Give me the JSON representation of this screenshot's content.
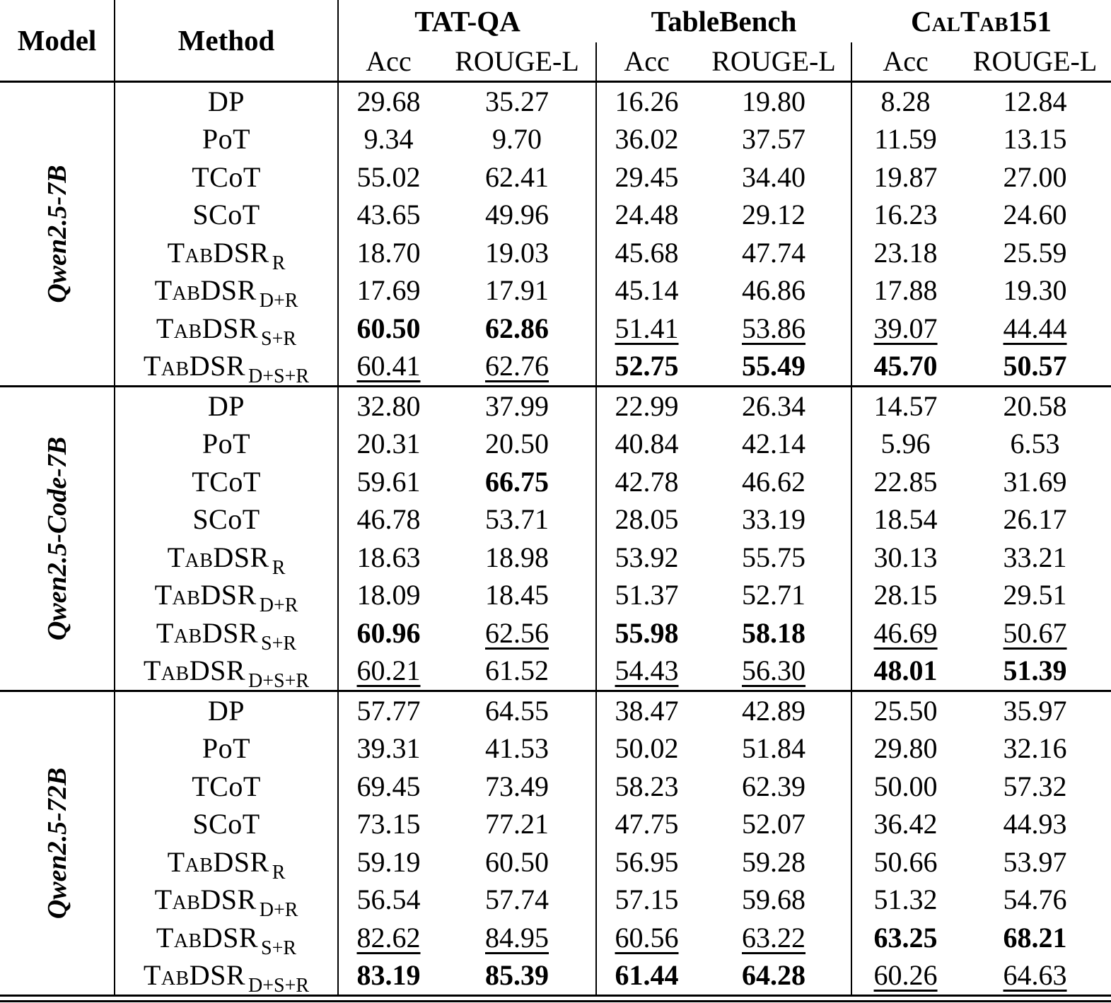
{
  "page": {
    "background_color": "#ffffff",
    "text_color": "#000000"
  },
  "table": {
    "header": {
      "model_label": "Model",
      "method_label": "Method",
      "groups": [
        {
          "label": "TAT-QA",
          "smallcaps": false,
          "metrics": [
            "Acc",
            "ROUGE-L"
          ]
        },
        {
          "label": "TableBench",
          "smallcaps": false,
          "metrics": [
            "Acc",
            "ROUGE-L"
          ]
        },
        {
          "label": "CalTab151",
          "smallcaps": true,
          "metrics": [
            "Acc",
            "ROUGE-L"
          ]
        }
      ]
    },
    "blocks": [
      {
        "model": "Qwen2.5-7B",
        "rows": [
          {
            "method": {
              "base": "DP",
              "sc": false,
              "sub": ""
            },
            "cells": [
              {
                "v": "29.68"
              },
              {
                "v": "35.27"
              },
              {
                "v": "16.26"
              },
              {
                "v": "19.80"
              },
              {
                "v": "8.28"
              },
              {
                "v": "12.84"
              }
            ]
          },
          {
            "method": {
              "base": "PoT",
              "sc": false,
              "sub": ""
            },
            "cells": [
              {
                "v": "9.34"
              },
              {
                "v": "9.70"
              },
              {
                "v": "36.02"
              },
              {
                "v": "37.57"
              },
              {
                "v": "11.59"
              },
              {
                "v": "13.15"
              }
            ]
          },
          {
            "method": {
              "base": "TCoT",
              "sc": false,
              "sub": ""
            },
            "cells": [
              {
                "v": "55.02"
              },
              {
                "v": "62.41"
              },
              {
                "v": "29.45"
              },
              {
                "v": "34.40"
              },
              {
                "v": "19.87"
              },
              {
                "v": "27.00"
              }
            ]
          },
          {
            "method": {
              "base": "SCoT",
              "sc": false,
              "sub": ""
            },
            "cells": [
              {
                "v": "43.65"
              },
              {
                "v": "49.96"
              },
              {
                "v": "24.48"
              },
              {
                "v": "29.12"
              },
              {
                "v": "16.23"
              },
              {
                "v": "24.60"
              }
            ]
          },
          {
            "method": {
              "base": "TabDSR",
              "sc": true,
              "sub": "R"
            },
            "cells": [
              {
                "v": "18.70"
              },
              {
                "v": "19.03"
              },
              {
                "v": "45.68"
              },
              {
                "v": "47.74"
              },
              {
                "v": "23.18"
              },
              {
                "v": "25.59"
              }
            ]
          },
          {
            "method": {
              "base": "TabDSR",
              "sc": true,
              "sub": "D+R"
            },
            "cells": [
              {
                "v": "17.69"
              },
              {
                "v": "17.91"
              },
              {
                "v": "45.14"
              },
              {
                "v": "46.86"
              },
              {
                "v": "17.88"
              },
              {
                "v": "19.30"
              }
            ]
          },
          {
            "method": {
              "base": "TabDSR",
              "sc": true,
              "sub": "S+R"
            },
            "cells": [
              {
                "v": "60.50",
                "f": "b"
              },
              {
                "v": "62.86",
                "f": "b"
              },
              {
                "v": "51.41",
                "f": "u"
              },
              {
                "v": "53.86",
                "f": "u"
              },
              {
                "v": "39.07",
                "f": "u"
              },
              {
                "v": "44.44",
                "f": "u"
              }
            ]
          },
          {
            "method": {
              "base": "TabDSR",
              "sc": true,
              "sub": "D+S+R"
            },
            "cells": [
              {
                "v": "60.41",
                "f": "u"
              },
              {
                "v": "62.76",
                "f": "u"
              },
              {
                "v": "52.75",
                "f": "b"
              },
              {
                "v": "55.49",
                "f": "b"
              },
              {
                "v": "45.70",
                "f": "b"
              },
              {
                "v": "50.57",
                "f": "b"
              }
            ]
          }
        ]
      },
      {
        "model": "Qwen2.5-Code-7B",
        "rows": [
          {
            "method": {
              "base": "DP",
              "sc": false,
              "sub": ""
            },
            "cells": [
              {
                "v": "32.80"
              },
              {
                "v": "37.99"
              },
              {
                "v": "22.99"
              },
              {
                "v": "26.34"
              },
              {
                "v": "14.57"
              },
              {
                "v": "20.58"
              }
            ]
          },
          {
            "method": {
              "base": "PoT",
              "sc": false,
              "sub": ""
            },
            "cells": [
              {
                "v": "20.31"
              },
              {
                "v": "20.50"
              },
              {
                "v": "40.84"
              },
              {
                "v": "42.14"
              },
              {
                "v": "5.96"
              },
              {
                "v": "6.53"
              }
            ]
          },
          {
            "method": {
              "base": "TCoT",
              "sc": false,
              "sub": ""
            },
            "cells": [
              {
                "v": "59.61"
              },
              {
                "v": "66.75",
                "f": "b"
              },
              {
                "v": "42.78"
              },
              {
                "v": "46.62"
              },
              {
                "v": "22.85"
              },
              {
                "v": "31.69"
              }
            ]
          },
          {
            "method": {
              "base": "SCoT",
              "sc": false,
              "sub": ""
            },
            "cells": [
              {
                "v": "46.78"
              },
              {
                "v": "53.71"
              },
              {
                "v": "28.05"
              },
              {
                "v": "33.19"
              },
              {
                "v": "18.54"
              },
              {
                "v": "26.17"
              }
            ]
          },
          {
            "method": {
              "base": "TabDSR",
              "sc": true,
              "sub": "R"
            },
            "cells": [
              {
                "v": "18.63"
              },
              {
                "v": "18.98"
              },
              {
                "v": "53.92"
              },
              {
                "v": "55.75"
              },
              {
                "v": "30.13"
              },
              {
                "v": "33.21"
              }
            ]
          },
          {
            "method": {
              "base": "TabDSR",
              "sc": true,
              "sub": "D+R"
            },
            "cells": [
              {
                "v": "18.09"
              },
              {
                "v": "18.45"
              },
              {
                "v": "51.37"
              },
              {
                "v": "52.71"
              },
              {
                "v": "28.15"
              },
              {
                "v": "29.51"
              }
            ]
          },
          {
            "method": {
              "base": "TabDSR",
              "sc": true,
              "sub": "S+R"
            },
            "cells": [
              {
                "v": "60.96",
                "f": "b"
              },
              {
                "v": "62.56",
                "f": "u"
              },
              {
                "v": "55.98",
                "f": "b"
              },
              {
                "v": "58.18",
                "f": "b"
              },
              {
                "v": "46.69",
                "f": "u"
              },
              {
                "v": "50.67",
                "f": "u"
              }
            ]
          },
          {
            "method": {
              "base": "TabDSR",
              "sc": true,
              "sub": "D+S+R"
            },
            "cells": [
              {
                "v": "60.21",
                "f": "u"
              },
              {
                "v": "61.52"
              },
              {
                "v": "54.43",
                "f": "u"
              },
              {
                "v": "56.30",
                "f": "u"
              },
              {
                "v": "48.01",
                "f": "b"
              },
              {
                "v": "51.39",
                "f": "b"
              }
            ]
          }
        ]
      },
      {
        "model": "Qwen2.5-72B",
        "rows": [
          {
            "method": {
              "base": "DP",
              "sc": false,
              "sub": ""
            },
            "cells": [
              {
                "v": "57.77"
              },
              {
                "v": "64.55"
              },
              {
                "v": "38.47"
              },
              {
                "v": "42.89"
              },
              {
                "v": "25.50"
              },
              {
                "v": "35.97"
              }
            ]
          },
          {
            "method": {
              "base": "PoT",
              "sc": false,
              "sub": ""
            },
            "cells": [
              {
                "v": "39.31"
              },
              {
                "v": "41.53"
              },
              {
                "v": "50.02"
              },
              {
                "v": "51.84"
              },
              {
                "v": "29.80"
              },
              {
                "v": "32.16"
              }
            ]
          },
          {
            "method": {
              "base": "TCoT",
              "sc": false,
              "sub": ""
            },
            "cells": [
              {
                "v": "69.45"
              },
              {
                "v": "73.49"
              },
              {
                "v": "58.23"
              },
              {
                "v": "62.39"
              },
              {
                "v": "50.00"
              },
              {
                "v": "57.32"
              }
            ]
          },
          {
            "method": {
              "base": "SCoT",
              "sc": false,
              "sub": ""
            },
            "cells": [
              {
                "v": "73.15"
              },
              {
                "v": "77.21"
              },
              {
                "v": "47.75"
              },
              {
                "v": "52.07"
              },
              {
                "v": "36.42"
              },
              {
                "v": "44.93"
              }
            ]
          },
          {
            "method": {
              "base": "TabDSR",
              "sc": true,
              "sub": "R"
            },
            "cells": [
              {
                "v": "59.19"
              },
              {
                "v": "60.50"
              },
              {
                "v": "56.95"
              },
              {
                "v": "59.28"
              },
              {
                "v": "50.66"
              },
              {
                "v": "53.97"
              }
            ]
          },
          {
            "method": {
              "base": "TabDSR",
              "sc": true,
              "sub": "D+R"
            },
            "cells": [
              {
                "v": "56.54"
              },
              {
                "v": "57.74"
              },
              {
                "v": "57.15"
              },
              {
                "v": "59.68"
              },
              {
                "v": "51.32"
              },
              {
                "v": "54.76"
              }
            ]
          },
          {
            "method": {
              "base": "TabDSR",
              "sc": true,
              "sub": "S+R"
            },
            "cells": [
              {
                "v": "82.62",
                "f": "u"
              },
              {
                "v": "84.95",
                "f": "u"
              },
              {
                "v": "60.56",
                "f": "u"
              },
              {
                "v": "63.22",
                "f": "u"
              },
              {
                "v": "63.25",
                "f": "b"
              },
              {
                "v": "68.21",
                "f": "b"
              }
            ]
          },
          {
            "method": {
              "base": "TabDSR",
              "sc": true,
              "sub": "D+S+R"
            },
            "cells": [
              {
                "v": "83.19",
                "f": "b"
              },
              {
                "v": "85.39",
                "f": "b"
              },
              {
                "v": "61.44",
                "f": "b"
              },
              {
                "v": "64.28",
                "f": "b"
              },
              {
                "v": "60.26",
                "f": "u"
              },
              {
                "v": "64.63",
                "f": "u"
              }
            ]
          }
        ]
      }
    ]
  }
}
